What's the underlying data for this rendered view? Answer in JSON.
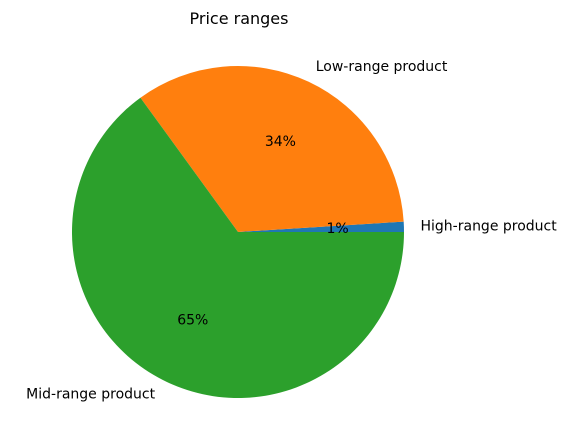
{
  "chart_data": {
    "type": "pie",
    "title": "Price ranges",
    "slices": [
      {
        "label": "High-range product",
        "value": 1,
        "pct_label": "1%",
        "color": "#1f77b4"
      },
      {
        "label": "Low-range product",
        "value": 34,
        "pct_label": "34%",
        "color": "#ff7f0e"
      },
      {
        "label": "Mid-range product",
        "value": 65,
        "pct_label": "65%",
        "color": "#2ca02c"
      }
    ],
    "start_angle_deg": 0,
    "direction": "counterclockwise"
  }
}
